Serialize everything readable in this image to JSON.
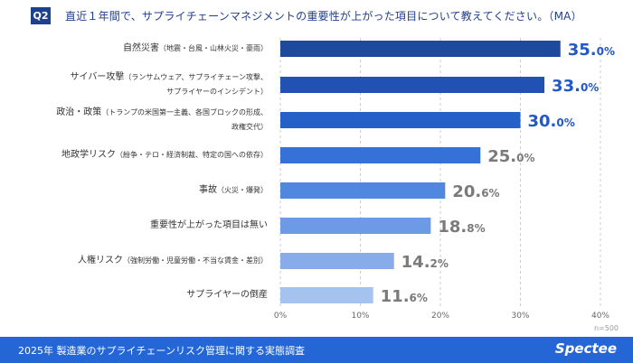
{
  "question_badge": "Q2",
  "question": "直近１年間で、サプライチェーンマネジメントの重要性が上がった項目について教えてください。（MA）",
  "chart_data": {
    "type": "bar",
    "orientation": "horizontal",
    "categories": [
      {
        "main": "自然災害",
        "sub": "（地震・台風・山林火災・豪雨）"
      },
      {
        "main": "サイバー攻撃",
        "sub": "（ランサムウェア、サプライチェーン攻撃、",
        "sub2": "サプライヤーのインシデント）"
      },
      {
        "main": "政治・政策",
        "sub": "（トランプの米国第一主義、各国ブロックの形成、",
        "sub2": "政権交代）"
      },
      {
        "main": "地政学リスク",
        "sub": "（紛争・テロ・経済制裁、特定の国への依存）"
      },
      {
        "main": "事故",
        "sub": "（火災・爆発）"
      },
      {
        "main": "重要性が上がった項目は無い"
      },
      {
        "main": "人権リスク",
        "sub": "（強制労働・児童労働・不当な賃金・差別）"
      },
      {
        "main": "サプライヤーの倒産"
      }
    ],
    "values": [
      35.0,
      33.0,
      30.0,
      25.0,
      20.6,
      18.8,
      14.2,
      11.6
    ],
    "xlim": [
      0,
      40
    ],
    "xticks": [
      "0%",
      "10%",
      "20%",
      "30%",
      "40%"
    ],
    "grid": true,
    "bar_colors": [
      "#1e4a9e",
      "#2152b3",
      "#2560c9",
      "#3571d6",
      "#5088e0",
      "#6d9ae4",
      "#88abea",
      "#a6c2ef"
    ],
    "highlight_label_color": "#2258c8",
    "label_color": "#7a7a7a"
  },
  "sample_size": "n=500",
  "footer": {
    "text": "2025年 製造業のサプライチェーンリスク管理に関する実態調査",
    "logo": "Spectee"
  },
  "footer_color": "#2566d6"
}
